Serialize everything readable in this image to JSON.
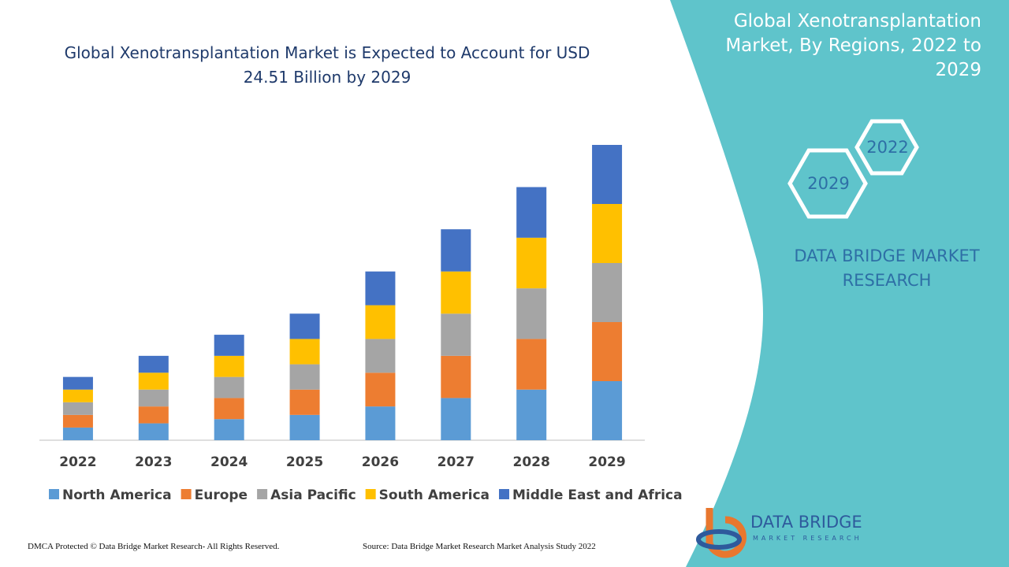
{
  "chart_data": {
    "type": "stacked_bar",
    "title": "Global Xenotransplantation Market is Expected to Account for USD 24.51 Billion by 2029",
    "categories": [
      "2022",
      "2023",
      "2024",
      "2025",
      "2026",
      "2027",
      "2028",
      "2029"
    ],
    "series": [
      {
        "name": "North America",
        "color": "#5b9bd5",
        "values": [
          1.05,
          1.4,
          1.75,
          2.1,
          2.8,
          3.5,
          4.2,
          4.9
        ]
      },
      {
        "name": "Europe",
        "color": "#ed7d31",
        "values": [
          1.05,
          1.4,
          1.75,
          2.1,
          2.8,
          3.5,
          4.2,
          4.9
        ]
      },
      {
        "name": "Asia Pacific",
        "color": "#a5a5a5",
        "values": [
          1.05,
          1.4,
          1.75,
          2.1,
          2.8,
          3.5,
          4.2,
          4.9
        ]
      },
      {
        "name": "South America",
        "color": "#ffc000",
        "values": [
          1.05,
          1.4,
          1.75,
          2.1,
          2.8,
          3.5,
          4.2,
          4.9
        ]
      },
      {
        "name": "Middle East and Africa",
        "color": "#4472c4",
        "values": [
          1.05,
          1.4,
          1.75,
          2.1,
          2.8,
          3.5,
          4.2,
          4.9
        ]
      }
    ],
    "legend": "bottom"
  },
  "panel": {
    "title": "Global Xenotransplantation Market, By Regions, 2022 to 2029",
    "hex_start": "2022",
    "hex_end": "2029",
    "brand": "DATA BRIDGE MARKET RESEARCH"
  },
  "logo": {
    "name": "DATA BRIDGE",
    "tagline": "MARKET RESEARCH"
  },
  "footer": {
    "copyright": "DMCA Protected © Data Bridge Market Research- All Rights Reserved.",
    "source": "Source: Data Bridge Market Research Market Analysis Study 2022"
  }
}
